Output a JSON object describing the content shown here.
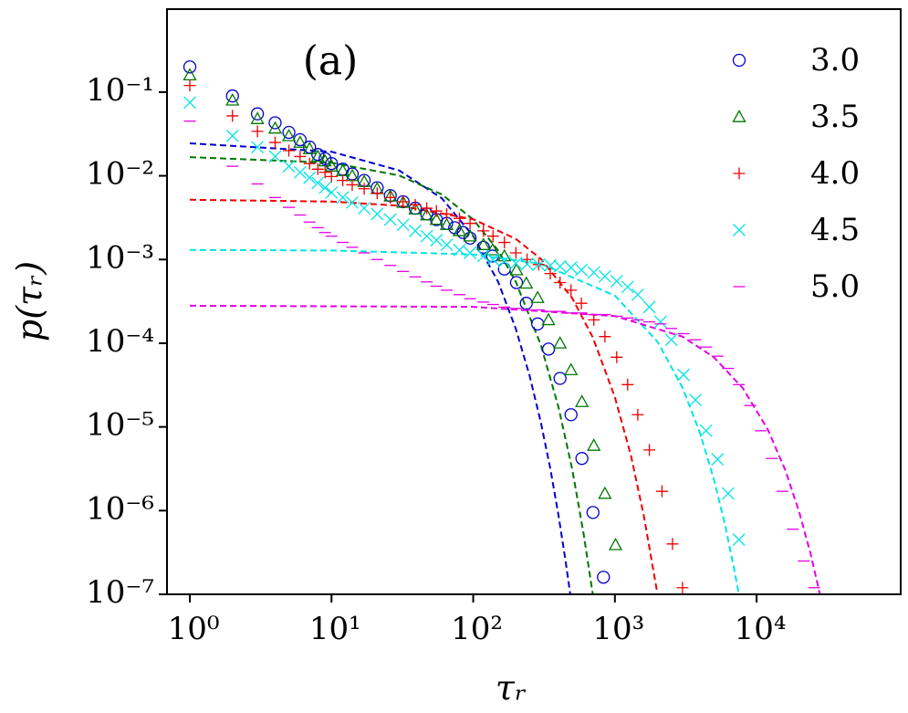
{
  "chart_data": {
    "type": "scatter",
    "annotation": "(a)",
    "x_label": "τᵣ",
    "y_label": "p(τᵣ)",
    "log_x": true,
    "log_y": true,
    "xlim": [
      0.69,
      104000
    ],
    "ylim": [
      1e-07,
      0.98
    ],
    "xticks": [
      {
        "value": 1,
        "label": "10⁰"
      },
      {
        "value": 10,
        "label": "10¹"
      },
      {
        "value": 100,
        "label": "10²"
      },
      {
        "value": 1000,
        "label": "10³"
      },
      {
        "value": 10000,
        "label": "10⁴"
      }
    ],
    "yticks": [
      {
        "value": 1e-07,
        "label": "10⁻⁷"
      },
      {
        "value": 1e-06,
        "label": "10⁻⁶"
      },
      {
        "value": 1e-05,
        "label": "10⁻⁵"
      },
      {
        "value": 0.0001,
        "label": "10⁻⁴"
      },
      {
        "value": 0.001,
        "label": "10⁻³"
      },
      {
        "value": 0.01,
        "label": "10⁻²"
      },
      {
        "value": 0.1,
        "label": "10⁻¹"
      }
    ],
    "legend": "upper right",
    "series": [
      {
        "name": "3.0",
        "color": "#0000cc",
        "marker": "circle",
        "x": [
          1,
          2,
          3,
          4,
          5,
          6,
          7,
          8,
          9,
          10,
          12,
          14,
          17,
          21,
          26,
          32,
          39,
          47,
          55,
          65,
          74,
          85,
          95,
          118,
          137,
          166,
          202,
          237,
          285,
          340,
          410,
          490,
          585,
          700,
          830
        ],
        "values": [
          0.2,
          0.09,
          0.055,
          0.043,
          0.033,
          0.027,
          0.022,
          0.018,
          0.016,
          0.014,
          0.012,
          0.0105,
          0.0088,
          0.0072,
          0.0058,
          0.0049,
          0.0041,
          0.0035,
          0.003,
          0.0027,
          0.0024,
          0.0021,
          0.0018,
          0.0014,
          0.0011,
          0.00077,
          0.00053,
          0.0003,
          0.00017,
          8.5e-05,
          3.8e-05,
          1.4e-05,
          4.2e-06,
          9.5e-07,
          1.6e-07
        ]
      },
      {
        "name": "3.5",
        "color": "#007700",
        "marker": "triangle",
        "x": [
          1,
          2,
          3,
          4,
          5,
          6,
          7,
          8,
          9,
          10,
          12,
          14,
          17,
          21,
          26,
          32,
          39,
          47,
          55,
          65,
          80,
          95,
          118,
          137,
          166,
          202,
          237,
          285,
          340,
          410,
          490,
          585,
          710,
          850,
          1010
        ],
        "values": [
          0.16,
          0.08,
          0.048,
          0.037,
          0.03,
          0.025,
          0.021,
          0.017,
          0.015,
          0.013,
          0.0115,
          0.01,
          0.0085,
          0.007,
          0.0057,
          0.0048,
          0.004,
          0.0034,
          0.003,
          0.0026,
          0.0022,
          0.0019,
          0.0015,
          0.0013,
          0.0011,
          0.00075,
          0.00052,
          0.00035,
          0.00019,
          0.0001,
          4.8e-05,
          2e-05,
          6e-06,
          1.6e-06,
          3.9e-07
        ]
      },
      {
        "name": "4.0",
        "color": "#ee0000",
        "marker": "plus",
        "x": [
          1,
          2,
          3,
          4,
          5,
          6,
          7,
          8,
          9,
          10,
          12,
          14,
          17,
          21,
          26,
          32,
          39,
          47,
          55,
          65,
          80,
          95,
          118,
          138,
          166,
          200,
          240,
          290,
          350,
          410,
          490,
          580,
          710,
          850,
          1030,
          1230,
          1450,
          1750,
          2150,
          2550,
          3000
        ],
        "values": [
          0.12,
          0.052,
          0.034,
          0.025,
          0.02,
          0.017,
          0.014,
          0.012,
          0.011,
          0.0098,
          0.0088,
          0.0078,
          0.007,
          0.0062,
          0.0055,
          0.0049,
          0.0045,
          0.0041,
          0.0038,
          0.0035,
          0.0031,
          0.0027,
          0.0022,
          0.0019,
          0.0016,
          0.0012,
          0.001,
          0.00087,
          0.00068,
          0.00053,
          0.00043,
          0.0003,
          0.00019,
          0.00012,
          6.8e-05,
          3.2e-05,
          1.4e-05,
          5.3e-06,
          1.7e-06,
          4e-07,
          1.2e-07
        ]
      },
      {
        "name": "4.5",
        "color": "#00e5e5",
        "marker": "x",
        "x": [
          1,
          2,
          3,
          4,
          5,
          6,
          7,
          8,
          9,
          10,
          12,
          14,
          17,
          21,
          26,
          32,
          39,
          47,
          55,
          65,
          80,
          95,
          118,
          138,
          166,
          200,
          240,
          290,
          350,
          410,
          490,
          580,
          710,
          850,
          1030,
          1230,
          1450,
          1750,
          2100,
          2500,
          3050,
          3700,
          4400,
          5300,
          6300,
          7500
        ],
        "values": [
          0.075,
          0.03,
          0.022,
          0.017,
          0.013,
          0.011,
          0.0095,
          0.0082,
          0.0072,
          0.0063,
          0.0055,
          0.0048,
          0.0041,
          0.0035,
          0.003,
          0.0026,
          0.0022,
          0.0019,
          0.0017,
          0.0015,
          0.0013,
          0.0012,
          0.0011,
          0.001,
          0.00095,
          0.0009,
          0.00088,
          0.00087,
          0.00085,
          0.00083,
          0.0008,
          0.00075,
          0.0007,
          0.00063,
          0.00055,
          0.00047,
          0.00038,
          0.00027,
          0.00018,
          0.00011,
          4.2e-05,
          2.1e-05,
          9e-06,
          4.1e-06,
          1.6e-06,
          4.5e-07
        ]
      },
      {
        "name": "5.0",
        "color": "#e500e5",
        "marker": "minus",
        "x": [
          1,
          2,
          3,
          4,
          5,
          6,
          7,
          8,
          9,
          10,
          12,
          14,
          17,
          21,
          26,
          32,
          39,
          47,
          55,
          65,
          80,
          95,
          118,
          138,
          166,
          200,
          240,
          290,
          350,
          410,
          490,
          580,
          710,
          850,
          1030,
          1230,
          1450,
          1750,
          2100,
          2500,
          3050,
          3700,
          4400,
          5300,
          6300,
          7500,
          9000,
          10700,
          12800,
          15200,
          18000,
          21500,
          25500
        ],
        "values": [
          0.045,
          0.013,
          0.008,
          0.0055,
          0.0042,
          0.0034,
          0.0028,
          0.0024,
          0.0021,
          0.0019,
          0.0016,
          0.0014,
          0.0012,
          0.001,
          0.00085,
          0.00072,
          0.00062,
          0.00054,
          0.00048,
          0.00043,
          0.00038,
          0.00034,
          0.00031,
          0.00029,
          0.00027,
          0.00026,
          0.00025,
          0.00025,
          0.00024,
          0.00024,
          0.00023,
          0.00023,
          0.00022,
          0.00022,
          0.00021,
          0.0002,
          0.00019,
          0.00018,
          0.00017,
          0.00015,
          0.00013,
          0.00011,
          9e-05,
          7e-05,
          5e-05,
          3.2e-05,
          1.8e-05,
          9e-06,
          4.2e-06,
          1.7e-06,
          6e-07,
          2.5e-07,
          1.2e-07
        ]
      }
    ],
    "fits": [
      {
        "color": "#0000cc",
        "x": [
          1,
          10,
          30,
          60,
          100,
          150,
          200,
          250,
          300,
          350,
          400,
          450,
          490
        ],
        "values": [
          0.0244,
          0.0194,
          0.0116,
          0.0054,
          0.0019,
          0.00054,
          0.000148,
          4.1e-05,
          1.14e-05,
          3.2e-06,
          8.8e-07,
          2.4e-07,
          8.7e-08
        ]
      },
      {
        "color": "#007700",
        "x": [
          1,
          10,
          30,
          60,
          100,
          150,
          200,
          300,
          400,
          500,
          600,
          700
        ],
        "values": [
          0.0167,
          0.0143,
          0.0101,
          0.006,
          0.003,
          0.00128,
          0.00054,
          9.6e-05,
          1.72e-05,
          3.1e-06,
          5.4e-07,
          9.7e-08
        ]
      },
      {
        "color": "#ee0000",
        "x": [
          1,
          10,
          30,
          100,
          200,
          300,
          500,
          700,
          1000,
          1300,
          1600,
          2000
        ],
        "values": [
          0.00517,
          0.00492,
          0.0044,
          0.00302,
          0.00176,
          0.00102,
          0.000345,
          0.000116,
          2.27e-05,
          4.5e-06,
          8.7e-07,
          9.9e-08
        ]
      },
      {
        "color": "#00e5e5",
        "x": [
          1,
          10,
          100,
          300,
          1000,
          2000,
          3000,
          4000,
          5000,
          6000,
          7000,
          7500
        ],
        "values": [
          0.0013,
          0.00128,
          0.00115,
          0.00089,
          0.00037,
          0.000104,
          2.95e-05,
          8.3e-06,
          2.36e-06,
          6.7e-07,
          1.88e-07,
          1e-07
        ]
      },
      {
        "color": "#e500e5",
        "x": [
          1,
          100,
          1000,
          3000,
          5000,
          8000,
          12000,
          16000,
          20000,
          24000,
          28000
        ],
        "values": [
          0.00028,
          0.000272,
          0.000211,
          0.00012,
          6.8e-05,
          2.9e-05,
          9.3e-06,
          3e-06,
          9.6e-07,
          3.1e-07,
          1e-07
        ]
      }
    ]
  }
}
